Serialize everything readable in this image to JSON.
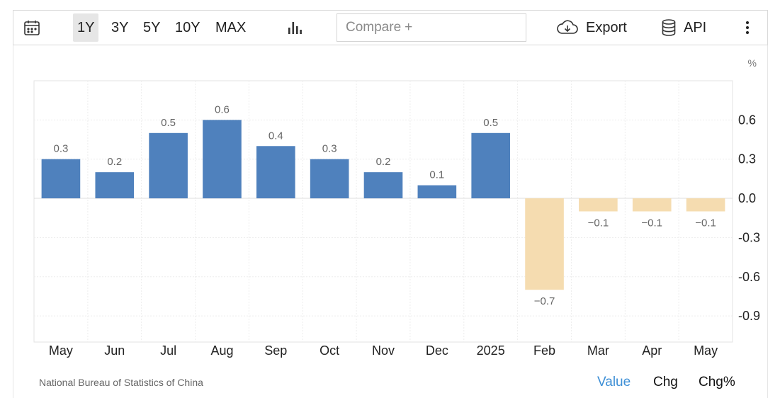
{
  "toolbar": {
    "ranges": [
      "1Y",
      "3Y",
      "5Y",
      "10Y",
      "MAX"
    ],
    "active_range": "1Y",
    "compare_placeholder": "Compare",
    "compare_plus": "+",
    "export_label": "Export",
    "api_label": "API"
  },
  "footer": {
    "source": "National Bureau of Statistics of China",
    "tabs": [
      "Value",
      "Chg",
      "Chg%"
    ],
    "active_tab": "Value"
  },
  "colors": {
    "positive": "#4f81bd",
    "negative": "#f5dcb0",
    "accent": "#3d8fd6"
  },
  "chart_data": {
    "type": "bar",
    "unit_label": "%",
    "categories": [
      "May",
      "Jun",
      "Jul",
      "Aug",
      "Sep",
      "Oct",
      "Nov",
      "Dec",
      "2025",
      "Feb",
      "Mar",
      "Apr",
      "May"
    ],
    "values": [
      0.3,
      0.2,
      0.5,
      0.6,
      0.4,
      0.3,
      0.2,
      0.1,
      0.5,
      -0.7,
      -0.1,
      -0.1,
      -0.1
    ],
    "data_labels": [
      "0.3",
      "0.2",
      "0.5",
      "0.6",
      "0.4",
      "0.3",
      "0.2",
      "0.1",
      "0.5",
      "−0.7",
      "−0.1",
      "−0.1",
      "−0.1"
    ],
    "y_ticks": [
      0.6,
      0.3,
      0.0,
      -0.3,
      -0.6,
      -0.9
    ],
    "y_tick_labels": [
      "0.6",
      "0.3",
      "0.0",
      "-0.3",
      "-0.6",
      "-0.9"
    ],
    "ylim": [
      -1.1,
      0.9
    ],
    "grid": true,
    "y_axis_position": "right"
  }
}
